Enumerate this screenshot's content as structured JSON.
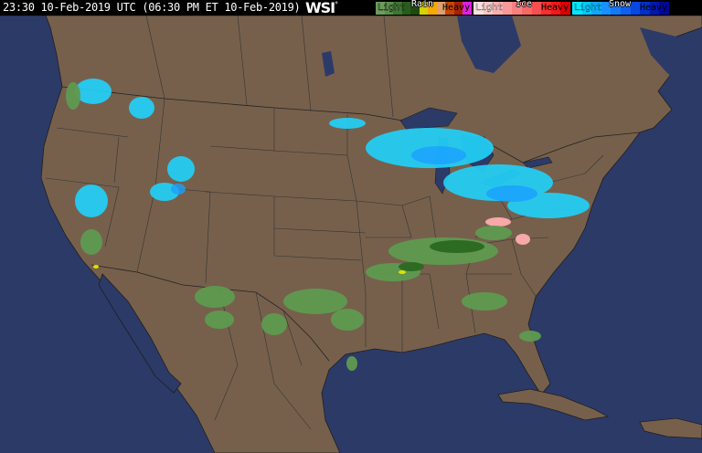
{
  "header": {
    "timestamp": "23:30 10-Feb-2019 UTC  (06:30 PM ET 10-Feb-2019)",
    "logo": "WSI",
    "logo_mark": "°"
  },
  "legend": {
    "rain": {
      "title": "Rain",
      "light": "Light",
      "heavy": "Heavy",
      "colors": [
        "#6b9c5c",
        "#5a8e4c",
        "#3f7632",
        "#2a5c1c",
        "#1e4a12",
        "#d8d000",
        "#f4a800",
        "#e0a070",
        "#c84800",
        "#a82000",
        "#e020e0"
      ]
    },
    "ice": {
      "title": "Ice",
      "light": "Light",
      "heavy": "Heavy",
      "colors": [
        "#fce0e0",
        "#f8c8c8",
        "#f8b0b0",
        "#f89898",
        "#f88080",
        "#f86868",
        "#f85050",
        "#f83030",
        "#f01818",
        "#e00000"
      ]
    },
    "snow": {
      "title": "Snow",
      "light": "Light",
      "heavy": "Heavy",
      "colors": [
        "#00e8ff",
        "#00c8ff",
        "#10a8ff",
        "#1890ff",
        "#1878f8",
        "#1060f0",
        "#0848e0",
        "#0030c8",
        "#0018b0",
        "#000898"
      ]
    }
  },
  "map": {
    "ocean_color": "#2c3a68",
    "land_color": "#76604c",
    "border_color": "#1e1e1e"
  }
}
